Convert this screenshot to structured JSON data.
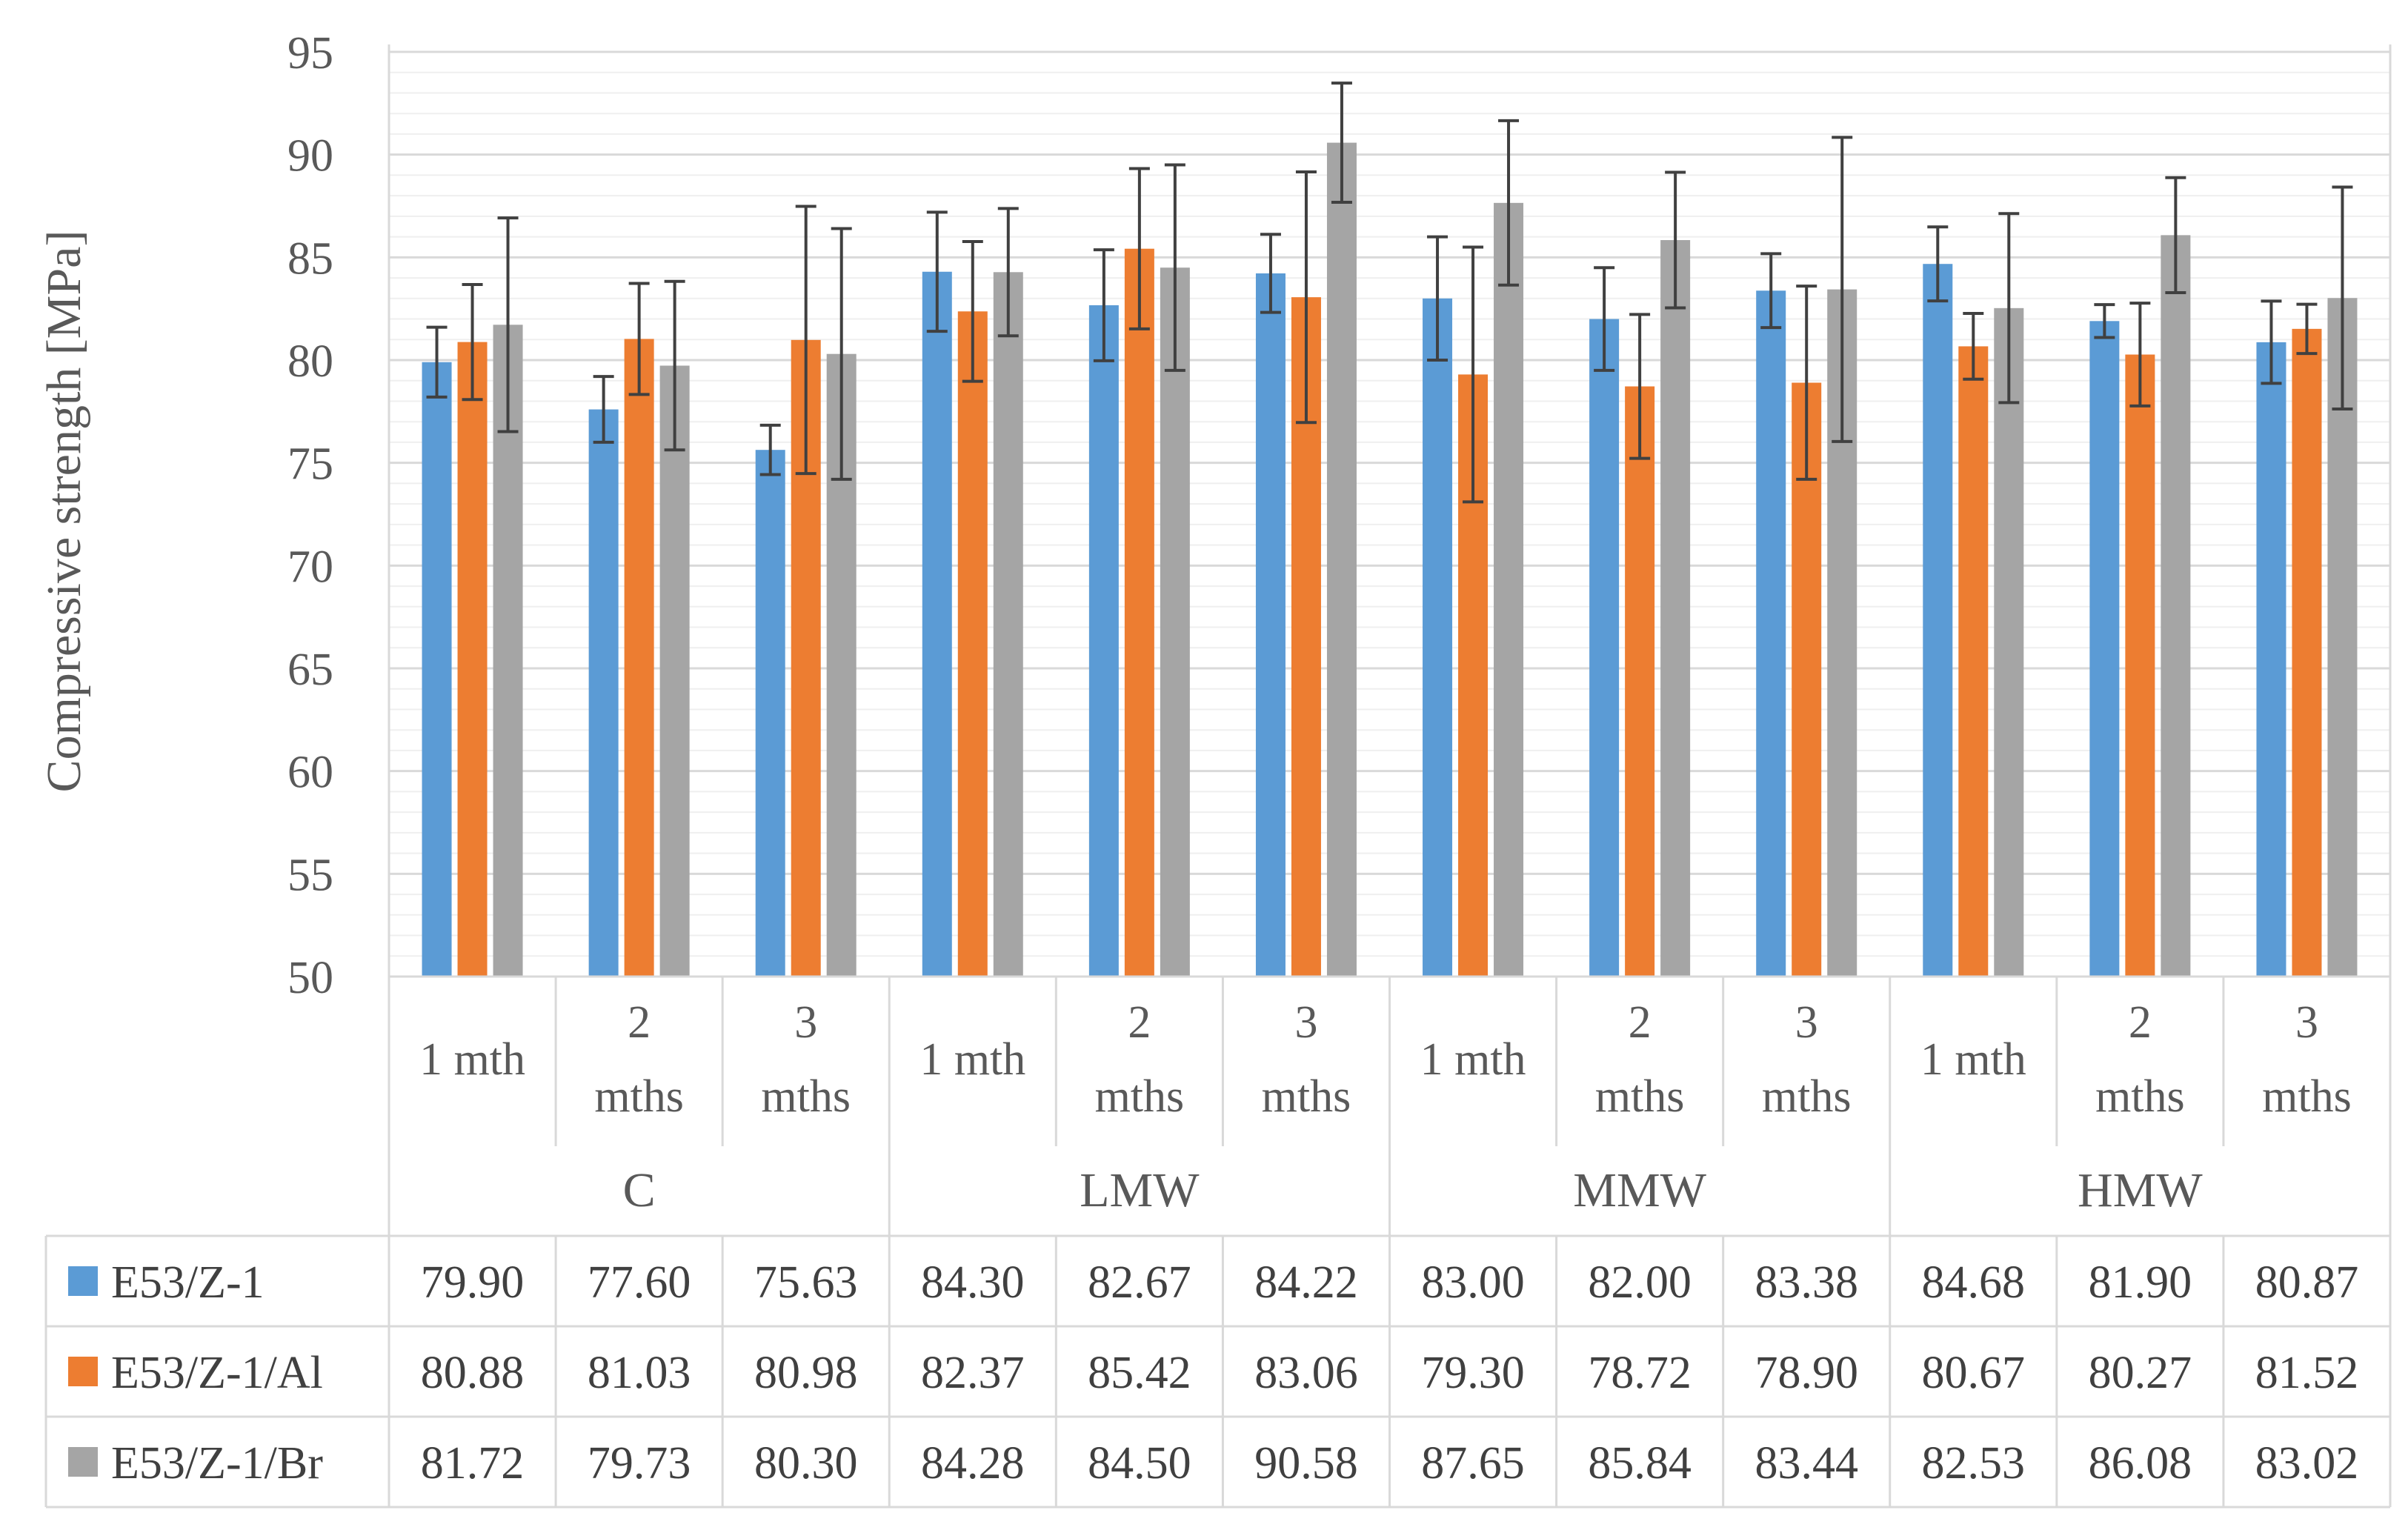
{
  "chart_data": {
    "type": "bar",
    "ylabel": "Compressive strength [MPa]",
    "ylim": [
      50,
      95
    ],
    "yticks": [
      50,
      55,
      60,
      65,
      70,
      75,
      80,
      85,
      90,
      95
    ],
    "grid": true,
    "groups": [
      {
        "name": "C",
        "subcategories": [
          [
            "1 mth"
          ],
          [
            "2",
            "mths"
          ],
          [
            "3",
            "mths"
          ]
        ]
      },
      {
        "name": "LMW",
        "subcategories": [
          [
            "1 mth"
          ],
          [
            "2",
            "mths"
          ],
          [
            "3",
            "mths"
          ]
        ]
      },
      {
        "name": "MMW",
        "subcategories": [
          [
            "1 mth"
          ],
          [
            "2",
            "mths"
          ],
          [
            "3",
            "mths"
          ]
        ]
      },
      {
        "name": "HMW",
        "subcategories": [
          [
            "1 mth"
          ],
          [
            "2",
            "mths"
          ],
          [
            "3",
            "mths"
          ]
        ]
      }
    ],
    "series": [
      {
        "name": "E53/Z-1",
        "color": "#5b9bd5",
        "values": [
          79.9,
          77.6,
          75.63,
          84.3,
          82.67,
          84.22,
          83.0,
          82.0,
          83.38,
          84.68,
          81.9,
          80.87
        ],
        "labels": [
          "79.90",
          "77.60",
          "75.63",
          "84.30",
          "82.67",
          "84.22",
          "83.00",
          "82.00",
          "83.38",
          "84.68",
          "81.90",
          "80.87"
        ],
        "errors": [
          1.7,
          1.6,
          1.2,
          2.9,
          2.7,
          1.9,
          3.0,
          2.5,
          1.8,
          1.8,
          0.8,
          2.0
        ]
      },
      {
        "name": "E53/Z-1/Al",
        "color": "#ed7d31",
        "values": [
          80.88,
          81.03,
          80.98,
          82.37,
          85.42,
          83.06,
          79.3,
          78.72,
          78.9,
          80.67,
          80.27,
          81.52
        ],
        "labels": [
          "80.88",
          "81.03",
          "80.98",
          "82.37",
          "85.42",
          "83.06",
          "79.30",
          "78.72",
          "78.90",
          "80.67",
          "80.27",
          "81.52"
        ],
        "errors": [
          2.8,
          2.7,
          6.5,
          3.4,
          3.9,
          6.1,
          6.2,
          3.5,
          4.7,
          1.6,
          2.5,
          1.2
        ]
      },
      {
        "name": "E53/Z-1/Br",
        "color": "#a5a5a5",
        "values": [
          81.72,
          79.73,
          80.3,
          84.28,
          84.5,
          90.58,
          87.65,
          85.84,
          83.44,
          82.53,
          86.08,
          83.02
        ],
        "labels": [
          "81.72",
          "79.73",
          "80.30",
          "84.28",
          "84.50",
          "90.58",
          "87.65",
          "85.84",
          "83.44",
          "82.53",
          "86.08",
          "83.02"
        ],
        "errors": [
          5.2,
          4.1,
          6.1,
          3.1,
          5.0,
          2.9,
          4.0,
          3.3,
          7.4,
          4.6,
          2.8,
          5.4
        ]
      }
    ]
  }
}
